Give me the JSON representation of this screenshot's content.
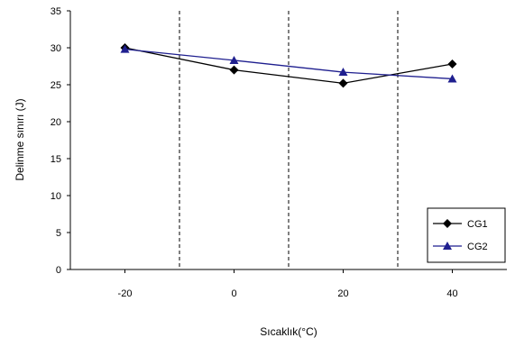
{
  "chart_data": {
    "type": "line",
    "x": [
      -20,
      0,
      20,
      40
    ],
    "xticks": [
      "-20",
      "0",
      "20",
      "40"
    ],
    "series": [
      {
        "name": "CG1",
        "values": [
          30,
          27,
          25.2,
          27.8
        ],
        "color": "#000000",
        "marker": "diamond"
      },
      {
        "name": "CG2",
        "values": [
          29.8,
          28.3,
          26.7,
          25.8
        ],
        "color": "#1f1f8f",
        "marker": "triangle"
      }
    ],
    "yticks": [
      0,
      5,
      10,
      15,
      20,
      25,
      30,
      35
    ],
    "ylim": [
      0,
      35
    ],
    "xlabel": "Sıcaklık(°C)",
    "ylabel": "Delinme sınırı (J)",
    "dashed_vertical_lines": [
      -10,
      10,
      30
    ],
    "legend_position": "bottom-right"
  }
}
